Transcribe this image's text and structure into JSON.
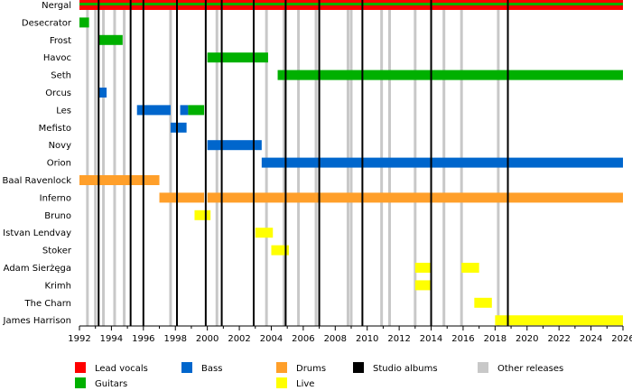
{
  "chart_data": {
    "type": "timeline",
    "title": "",
    "xlabel": "",
    "ylabel": "",
    "xlim": [
      1992.0,
      2026.0
    ],
    "x_ticks": [
      "1992",
      "1994",
      "1996",
      "1998",
      "2000",
      "2002",
      "2004",
      "2006",
      "2008",
      "2010",
      "2012",
      "2014",
      "2016",
      "2018",
      "2020",
      "2022",
      "2024",
      "2026"
    ],
    "grid": false,
    "legend_position": "bottom",
    "colors": {
      "lead_vocals": "#ff0000",
      "guitars": "#00b000",
      "bass": "#0066cc",
      "drums": "#ff9f2a",
      "live": "#ffff00",
      "studio_albums": "#000000",
      "other_releases": "#c8c8c8"
    },
    "legend": [
      {
        "role": "lead_vocals",
        "label": "Lead vocals"
      },
      {
        "role": "bass",
        "label": "Bass"
      },
      {
        "role": "drums",
        "label": "Drums"
      },
      {
        "role": "studio_albums",
        "label": "Studio albums"
      },
      {
        "role": "other_releases",
        "label": "Other releases"
      },
      {
        "role": "guitars",
        "label": "Guitars"
      },
      {
        "role": "live",
        "label": "Live"
      }
    ],
    "studio_albums": [
      1993.2,
      1995.2,
      1996.0,
      1998.1,
      1999.9,
      2000.9,
      2002.9,
      2004.9,
      2007.0,
      2009.7,
      2014.0,
      2018.8
    ],
    "other_releases": [
      1992.5,
      1993.0,
      1993.5,
      1994.2,
      1994.8,
      1997.7,
      2000.6,
      2003.7,
      2004.8,
      2005.7,
      2006.8,
      2008.8,
      2009.0,
      2010.9,
      2011.4,
      2013.0,
      2014.8,
      2015.9,
      2018.2
    ],
    "members": [
      {
        "name": "Nergal",
        "periods": [
          {
            "role": "lead_vocals",
            "start": 1992.0,
            "end": 2026.0
          },
          {
            "role": "guitars",
            "start": 1992.0,
            "end": 2026.0
          }
        ]
      },
      {
        "name": "Desecrator",
        "periods": [
          {
            "role": "guitars",
            "start": 1992.0,
            "end": 1992.6
          }
        ]
      },
      {
        "name": "Frost",
        "periods": [
          {
            "role": "guitars",
            "start": 1993.2,
            "end": 1994.7
          }
        ]
      },
      {
        "name": "Havoc",
        "periods": [
          {
            "role": "guitars",
            "start": 2000.0,
            "end": 2003.8
          }
        ]
      },
      {
        "name": "Seth",
        "periods": [
          {
            "role": "guitars",
            "start": 2004.4,
            "end": 2026.0
          }
        ]
      },
      {
        "name": "Orcus",
        "periods": [
          {
            "role": "bass",
            "start": 1993.2,
            "end": 1993.7
          }
        ]
      },
      {
        "name": "Les",
        "periods": [
          {
            "role": "bass",
            "start": 1995.6,
            "end": 1997.7
          },
          {
            "role": "bass",
            "start": 1998.3,
            "end": 1998.8
          },
          {
            "role": "guitars",
            "start": 1998.8,
            "end": 1999.8
          }
        ]
      },
      {
        "name": "Mefisto",
        "periods": [
          {
            "role": "bass",
            "start": 1997.7,
            "end": 1998.7
          }
        ]
      },
      {
        "name": "Novy",
        "periods": [
          {
            "role": "bass",
            "start": 2000.0,
            "end": 2003.4
          }
        ]
      },
      {
        "name": "Orion",
        "periods": [
          {
            "role": "bass",
            "start": 2003.4,
            "end": 2026.0
          }
        ]
      },
      {
        "name": "Baal Ravenlock",
        "periods": [
          {
            "role": "drums",
            "start": 1992.0,
            "end": 1997.0
          }
        ]
      },
      {
        "name": "Inferno",
        "periods": [
          {
            "role": "drums",
            "start": 1997.0,
            "end": 1999.8
          },
          {
            "role": "drums",
            "start": 2000.0,
            "end": 2026.0
          }
        ]
      },
      {
        "name": "Bruno",
        "periods": [
          {
            "role": "live",
            "start": 1999.2,
            "end": 2000.2
          }
        ]
      },
      {
        "name": "Istvan Lendvay",
        "periods": [
          {
            "role": "live",
            "start": 2003.0,
            "end": 2004.1
          }
        ]
      },
      {
        "name": "Stoker",
        "periods": [
          {
            "role": "live",
            "start": 2004.0,
            "end": 2005.1
          }
        ]
      },
      {
        "name": "Adam Sierżęga",
        "periods": [
          {
            "role": "live",
            "start": 2013.0,
            "end": 2014.0
          },
          {
            "role": "live",
            "start": 2015.9,
            "end": 2017.0
          }
        ]
      },
      {
        "name": "Krimh",
        "periods": [
          {
            "role": "live",
            "start": 2013.0,
            "end": 2014.0
          }
        ]
      },
      {
        "name": "The Charn",
        "periods": [
          {
            "role": "live",
            "start": 2016.7,
            "end": 2017.8
          }
        ]
      },
      {
        "name": "James Harrison",
        "periods": [
          {
            "role": "live",
            "start": 2018.0,
            "end": 2026.0
          }
        ]
      }
    ]
  }
}
